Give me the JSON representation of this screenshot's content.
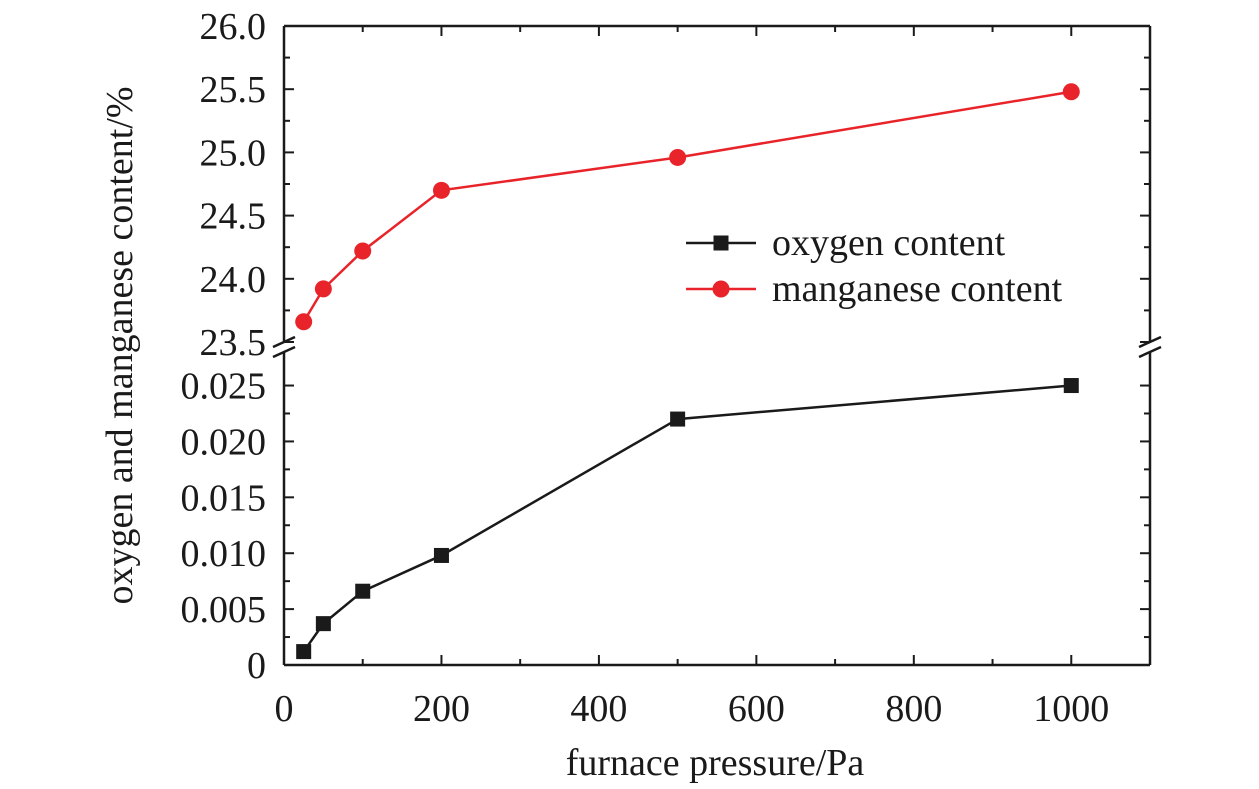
{
  "chart_data": {
    "type": "line",
    "xlabel": "furnace pressure/Pa",
    "ylabel": "oxygen and manganese content/%",
    "xlim": [
      0,
      1100
    ],
    "x_ticks": [
      0,
      200,
      400,
      600,
      800,
      1000
    ],
    "x_tick_labels": [
      "0",
      "200",
      "400",
      "600",
      "800",
      "1000"
    ],
    "upper_axis": {
      "ylim": [
        23.5,
        26.0
      ],
      "ticks": [
        23.5,
        24.0,
        24.5,
        25.0,
        25.5,
        26.0
      ],
      "tick_labels": [
        "23.5",
        "24.0",
        "24.5",
        "25.0",
        "25.5",
        "26.0"
      ]
    },
    "lower_axis": {
      "ylim": [
        0,
        0.028
      ],
      "ticks": [
        0,
        0.005,
        0.01,
        0.015,
        0.02,
        0.025
      ],
      "tick_labels": [
        "0",
        "0.005",
        "0.010",
        "0.015",
        "0.020",
        "0.025"
      ]
    },
    "x": [
      25,
      50,
      100,
      200,
      500,
      1000
    ],
    "series": [
      {
        "name": "oxygen content",
        "axis": "lower",
        "marker": "square",
        "color": "#1a1a1a",
        "values": [
          0.0012,
          0.0037,
          0.0066,
          0.0098,
          0.022,
          0.025
        ]
      },
      {
        "name": "manganese content",
        "axis": "upper",
        "marker": "circle",
        "color": "#e8242a",
        "values": [
          23.66,
          23.92,
          24.22,
          24.7,
          24.96,
          25.48
        ]
      }
    ],
    "legend_position": "right-middle of upper panel",
    "axis_break": true
  }
}
